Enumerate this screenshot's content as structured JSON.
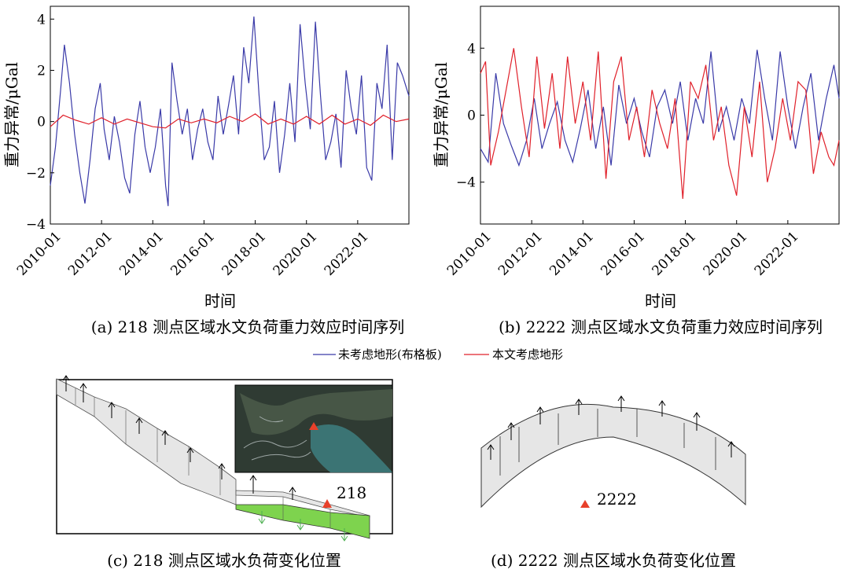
{
  "chart_data": [
    {
      "panel": "a",
      "type": "line",
      "caption": "(a) 218 测点区域水文负荷重力效应时间序列",
      "xlabel": "时间",
      "ylabel": "重力异常/μGal",
      "ylim": [
        -4,
        4.5
      ],
      "yticks": [
        -4,
        -2,
        0,
        2,
        4
      ],
      "yticklabels": [
        "−4",
        "−2",
        "0",
        "2",
        "4"
      ],
      "xticks": [
        "2010-01",
        "2012-01",
        "2014-01",
        "2016-01",
        "2018-01",
        "2020-01",
        "2022-01"
      ],
      "xrange": [
        2010.0,
        2024.0
      ],
      "series": [
        {
          "name": "未考虑地形(布格板)",
          "color": "#3a3aa8",
          "x": [
            2010.0,
            2010.2,
            2010.4,
            2010.55,
            2010.75,
            2010.95,
            2011.15,
            2011.35,
            2011.55,
            2011.75,
            2011.95,
            2012.1,
            2012.3,
            2012.5,
            2012.7,
            2012.9,
            2013.1,
            2013.3,
            2013.5,
            2013.7,
            2013.9,
            2014.1,
            2014.3,
            2014.5,
            2014.6,
            2014.75,
            2014.95,
            2015.15,
            2015.35,
            2015.55,
            2015.75,
            2015.95,
            2016.15,
            2016.35,
            2016.55,
            2016.75,
            2016.95,
            2017.15,
            2017.35,
            2017.55,
            2017.75,
            2017.95,
            2018.15,
            2018.35,
            2018.55,
            2018.75,
            2018.95,
            2019.15,
            2019.35,
            2019.55,
            2019.75,
            2019.95,
            2020.15,
            2020.35,
            2020.55,
            2020.75,
            2020.95,
            2021.15,
            2021.35,
            2021.55,
            2021.75,
            2021.95,
            2022.15,
            2022.35,
            2022.55,
            2022.75,
            2022.95,
            2023.15,
            2023.35,
            2023.55,
            2023.75,
            2024.0
          ],
          "values": [
            -2.5,
            -1.0,
            1.2,
            3.0,
            1.5,
            -0.5,
            -2.0,
            -3.2,
            -1.5,
            0.5,
            1.5,
            -0.3,
            -1.5,
            0.2,
            -0.8,
            -2.2,
            -2.8,
            -0.5,
            0.8,
            -1.0,
            -2.0,
            -1.0,
            0.5,
            -2.5,
            -3.3,
            2.3,
            0.8,
            -0.5,
            0.5,
            -1.5,
            -0.3,
            0.5,
            -0.8,
            -1.5,
            1.0,
            -0.5,
            0.6,
            1.8,
            -0.5,
            2.9,
            1.5,
            4.1,
            1.0,
            -1.5,
            -1.0,
            0.8,
            -2.0,
            -0.5,
            1.5,
            -0.8,
            3.8,
            1.5,
            -0.3,
            3.9,
            1.0,
            -1.5,
            -0.8,
            0.3,
            -1.8,
            2.0,
            0.5,
            -0.5,
            1.8,
            -1.8,
            -2.3,
            1.5,
            0.5,
            3.0,
            -1.5,
            2.3,
            1.8,
            1.0
          ]
        },
        {
          "name": "本文考虑地形",
          "color": "#e0202a",
          "x": [
            2010.0,
            2010.5,
            2011.0,
            2011.5,
            2012.0,
            2012.5,
            2013.0,
            2013.5,
            2014.0,
            2014.5,
            2015.0,
            2015.5,
            2016.0,
            2016.5,
            2017.0,
            2017.5,
            2018.0,
            2018.5,
            2019.0,
            2019.5,
            2020.0,
            2020.5,
            2021.0,
            2021.5,
            2022.0,
            2022.5,
            2023.0,
            2023.5,
            2024.0
          ],
          "values": [
            -0.2,
            0.25,
            0.05,
            -0.1,
            0.15,
            -0.1,
            0.1,
            -0.05,
            -0.2,
            -0.25,
            0.1,
            -0.05,
            0.1,
            -0.05,
            0.2,
            0.0,
            0.3,
            -0.1,
            0.1,
            -0.1,
            0.2,
            -0.1,
            0.25,
            -0.1,
            0.1,
            -0.15,
            0.25,
            0.0,
            0.1
          ]
        }
      ]
    },
    {
      "panel": "b",
      "type": "line",
      "caption": "(b) 2222 测点区域水文负荷重力效应时间序列",
      "xlabel": "时间",
      "ylabel": "重力异常/μGal",
      "ylim": [
        -6.5,
        6.5
      ],
      "yticks": [
        -4,
        0,
        4
      ],
      "yticklabels": [
        "−4",
        "0",
        "4"
      ],
      "xticks": [
        "2010-01",
        "2012-01",
        "2014-01",
        "2016-01",
        "2018-01",
        "2020-01",
        "2022-01"
      ],
      "xrange": [
        2010.0,
        2024.0
      ],
      "series": [
        {
          "name": "未考虑地形(布格板)",
          "color": "#3a3aa8",
          "x": [
            2010.0,
            2010.3,
            2010.6,
            2010.9,
            2011.2,
            2011.5,
            2011.8,
            2012.1,
            2012.4,
            2012.7,
            2013.0,
            2013.3,
            2013.6,
            2013.9,
            2014.2,
            2014.5,
            2014.8,
            2015.1,
            2015.4,
            2015.7,
            2016.0,
            2016.3,
            2016.6,
            2016.9,
            2017.2,
            2017.5,
            2017.8,
            2018.1,
            2018.4,
            2018.7,
            2019.0,
            2019.3,
            2019.6,
            2019.9,
            2020.2,
            2020.5,
            2020.8,
            2021.1,
            2021.4,
            2021.7,
            2022.0,
            2022.3,
            2022.6,
            2022.9,
            2023.2,
            2023.5,
            2023.8,
            2024.0
          ],
          "values": [
            -2.0,
            -2.8,
            2.5,
            -0.5,
            -1.8,
            -3.0,
            -1.5,
            1.0,
            -2.0,
            -0.5,
            0.8,
            -1.5,
            -2.8,
            -0.8,
            1.5,
            -2.0,
            0.5,
            -3.0,
            1.8,
            -0.5,
            1.0,
            -1.0,
            -2.5,
            0.5,
            1.5,
            -0.5,
            2.0,
            -1.5,
            1.0,
            -0.5,
            3.8,
            -1.0,
            0.5,
            -1.5,
            1.0,
            -0.5,
            3.9,
            1.0,
            -1.5,
            3.8,
            0.5,
            -2.0,
            0.5,
            2.5,
            -1.5,
            1.0,
            3.0,
            1.0
          ]
        },
        {
          "name": "本文考虑地形",
          "color": "#e0202a",
          "x": [
            2010.0,
            2010.2,
            2010.4,
            2010.7,
            2011.0,
            2011.3,
            2011.6,
            2011.9,
            2012.2,
            2012.5,
            2012.8,
            2013.1,
            2013.4,
            2013.7,
            2014.0,
            2014.3,
            2014.6,
            2014.9,
            2015.2,
            2015.5,
            2015.8,
            2016.1,
            2016.4,
            2016.7,
            2017.0,
            2017.3,
            2017.6,
            2017.9,
            2018.2,
            2018.5,
            2018.8,
            2019.1,
            2019.4,
            2019.7,
            2020.0,
            2020.3,
            2020.6,
            2020.9,
            2021.2,
            2021.5,
            2021.8,
            2022.1,
            2022.4,
            2022.7,
            2023.0,
            2023.3,
            2023.6,
            2023.8,
            2024.0
          ],
          "values": [
            2.5,
            3.2,
            -3.0,
            -1.0,
            1.5,
            4.0,
            0.5,
            -2.5,
            3.5,
            -0.8,
            2.5,
            -2.0,
            3.5,
            -0.5,
            2.0,
            -1.5,
            3.8,
            -3.8,
            2.0,
            3.5,
            -1.5,
            0.5,
            -2.5,
            1.5,
            -0.5,
            -2.0,
            1.0,
            -5.0,
            2.0,
            1.0,
            3.0,
            -1.5,
            0.5,
            -3.0,
            -4.8,
            0.5,
            -2.5,
            2.0,
            -4.0,
            -2.0,
            1.0,
            -1.5,
            2.0,
            1.5,
            -3.5,
            -1.0,
            -2.5,
            -3.0,
            -1.5
          ]
        }
      ]
    }
  ],
  "legend": [
    {
      "label": "未考虑地形(布格板)",
      "color": "#3a3aa8"
    },
    {
      "label": "本文考虑地形",
      "color": "#e0202a"
    }
  ],
  "panel_c": {
    "caption": "(c) 218 测点区域水负荷变化位置",
    "station": "218",
    "colors": {
      "gray_fill": "#e6e6e6",
      "green_fill": "#7ed34e",
      "marker": "#e8402a",
      "arrow_green": "#4caf50"
    }
  },
  "panel_d": {
    "caption": "(d) 2222 测点区域水负荷变化位置",
    "station": "2222"
  }
}
